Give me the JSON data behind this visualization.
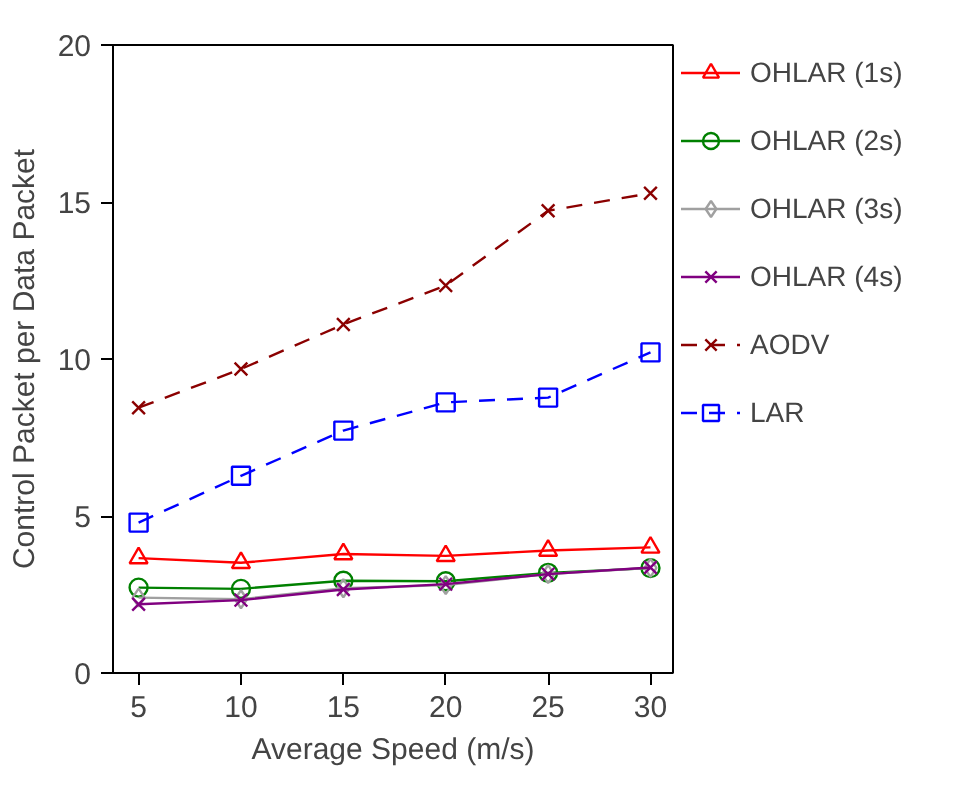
{
  "chart_data": {
    "type": "line",
    "xlabel": "Average Speed (m/s)",
    "ylabel": "Control Packet per Data Packet",
    "x": [
      5,
      10,
      15,
      20,
      25,
      30
    ],
    "xlim": [
      3.75,
      31.1
    ],
    "xticks": [
      5,
      10,
      15,
      20,
      25,
      30
    ],
    "ylim": [
      0,
      20
    ],
    "yticks": [
      0,
      5,
      10,
      15,
      20
    ],
    "grid": false,
    "legend": "right",
    "series": [
      {
        "name": "OHLAR (1s)",
        "color": "#ff0000",
        "marker": "triangle",
        "line_style": "solid",
        "values": [
          3.66,
          3.51,
          3.79,
          3.73,
          3.9,
          4.0
        ]
      },
      {
        "name": "OHLAR (2s)",
        "color": "#008000",
        "marker": "circle",
        "line_style": "solid",
        "values": [
          2.72,
          2.68,
          2.94,
          2.92,
          3.19,
          3.34
        ]
      },
      {
        "name": "OHLAR (3s)",
        "color": "#a0a0a0",
        "marker": "diamond",
        "line_style": "solid",
        "values": [
          2.4,
          2.35,
          2.7,
          2.8,
          3.15,
          3.35
        ]
      },
      {
        "name": "OHLAR (4s)",
        "color": "#800080",
        "marker": "cross",
        "line_style": "solid",
        "values": [
          2.19,
          2.32,
          2.66,
          2.83,
          3.15,
          3.36
        ]
      },
      {
        "name": "AODV",
        "color": "#8b0000",
        "marker": "cross",
        "line_style": "dashed",
        "values": [
          8.45,
          9.68,
          11.1,
          12.34,
          14.72,
          15.28
        ]
      },
      {
        "name": "LAR",
        "color": "#0000ff",
        "marker": "square",
        "line_style": "dashed",
        "values": [
          4.79,
          6.28,
          7.72,
          8.62,
          8.77,
          10.21
        ]
      }
    ]
  }
}
